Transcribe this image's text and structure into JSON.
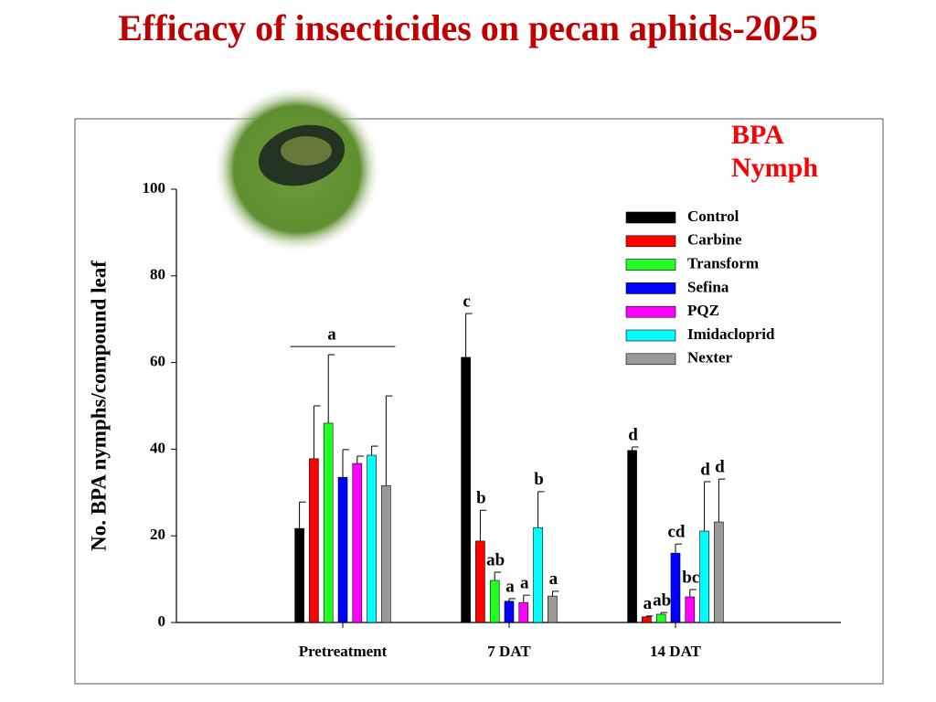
{
  "chart_data": {
    "type": "bar",
    "title": "Efficacy of insecticides on pecan aphids-2025",
    "annotation": "BPA Nymph",
    "y_label": "No. BPA nymphs/compound leaf",
    "categories": [
      "Pretreatment",
      "7 DAT",
      "14 DAT"
    ],
    "group_letters": [
      "a",
      null,
      null
    ],
    "ylim": [
      0,
      100
    ],
    "yticks": [
      0,
      20,
      40,
      60,
      80,
      100
    ],
    "series": [
      {
        "name": "Control",
        "color": "#000000",
        "values": [
          21.7,
          61.2,
          39.7
        ],
        "errors": [
          6.1,
          10.1,
          0.8
        ],
        "letters": [
          null,
          "c",
          "d"
        ]
      },
      {
        "name": "Carbine",
        "color": "#ff0000",
        "values": [
          37.8,
          18.8,
          1.3
        ],
        "errors": [
          12.2,
          7.1,
          0.2
        ],
        "letters": [
          null,
          "b",
          "a"
        ]
      },
      {
        "name": "Transform",
        "color": "#22ff22",
        "values": [
          46.0,
          9.7,
          1.9
        ],
        "errors": [
          15.8,
          1.9,
          0.4
        ],
        "letters": [
          null,
          "ab",
          "ab"
        ]
      },
      {
        "name": "Sefina",
        "color": "#0000ff",
        "values": [
          33.5,
          4.9,
          16.0
        ],
        "errors": [
          6.4,
          0.6,
          2.1
        ],
        "letters": [
          null,
          "a",
          "cd"
        ]
      },
      {
        "name": "PQZ",
        "color": "#ff00ff",
        "values": [
          36.7,
          4.6,
          5.9
        ],
        "errors": [
          1.7,
          1.7,
          1.7
        ],
        "letters": [
          null,
          "a",
          "bc"
        ]
      },
      {
        "name": "Imidacloprid",
        "color": "#00ffff",
        "values": [
          38.6,
          21.9,
          21.1
        ],
        "errors": [
          2.1,
          8.3,
          11.4
        ],
        "letters": [
          null,
          "b",
          "d"
        ]
      },
      {
        "name": "Nexter",
        "color": "#999999",
        "values": [
          31.6,
          6.1,
          23.2
        ],
        "errors": [
          20.7,
          1.1,
          9.9
        ],
        "letters": [
          null,
          "a",
          "d"
        ]
      }
    ]
  }
}
